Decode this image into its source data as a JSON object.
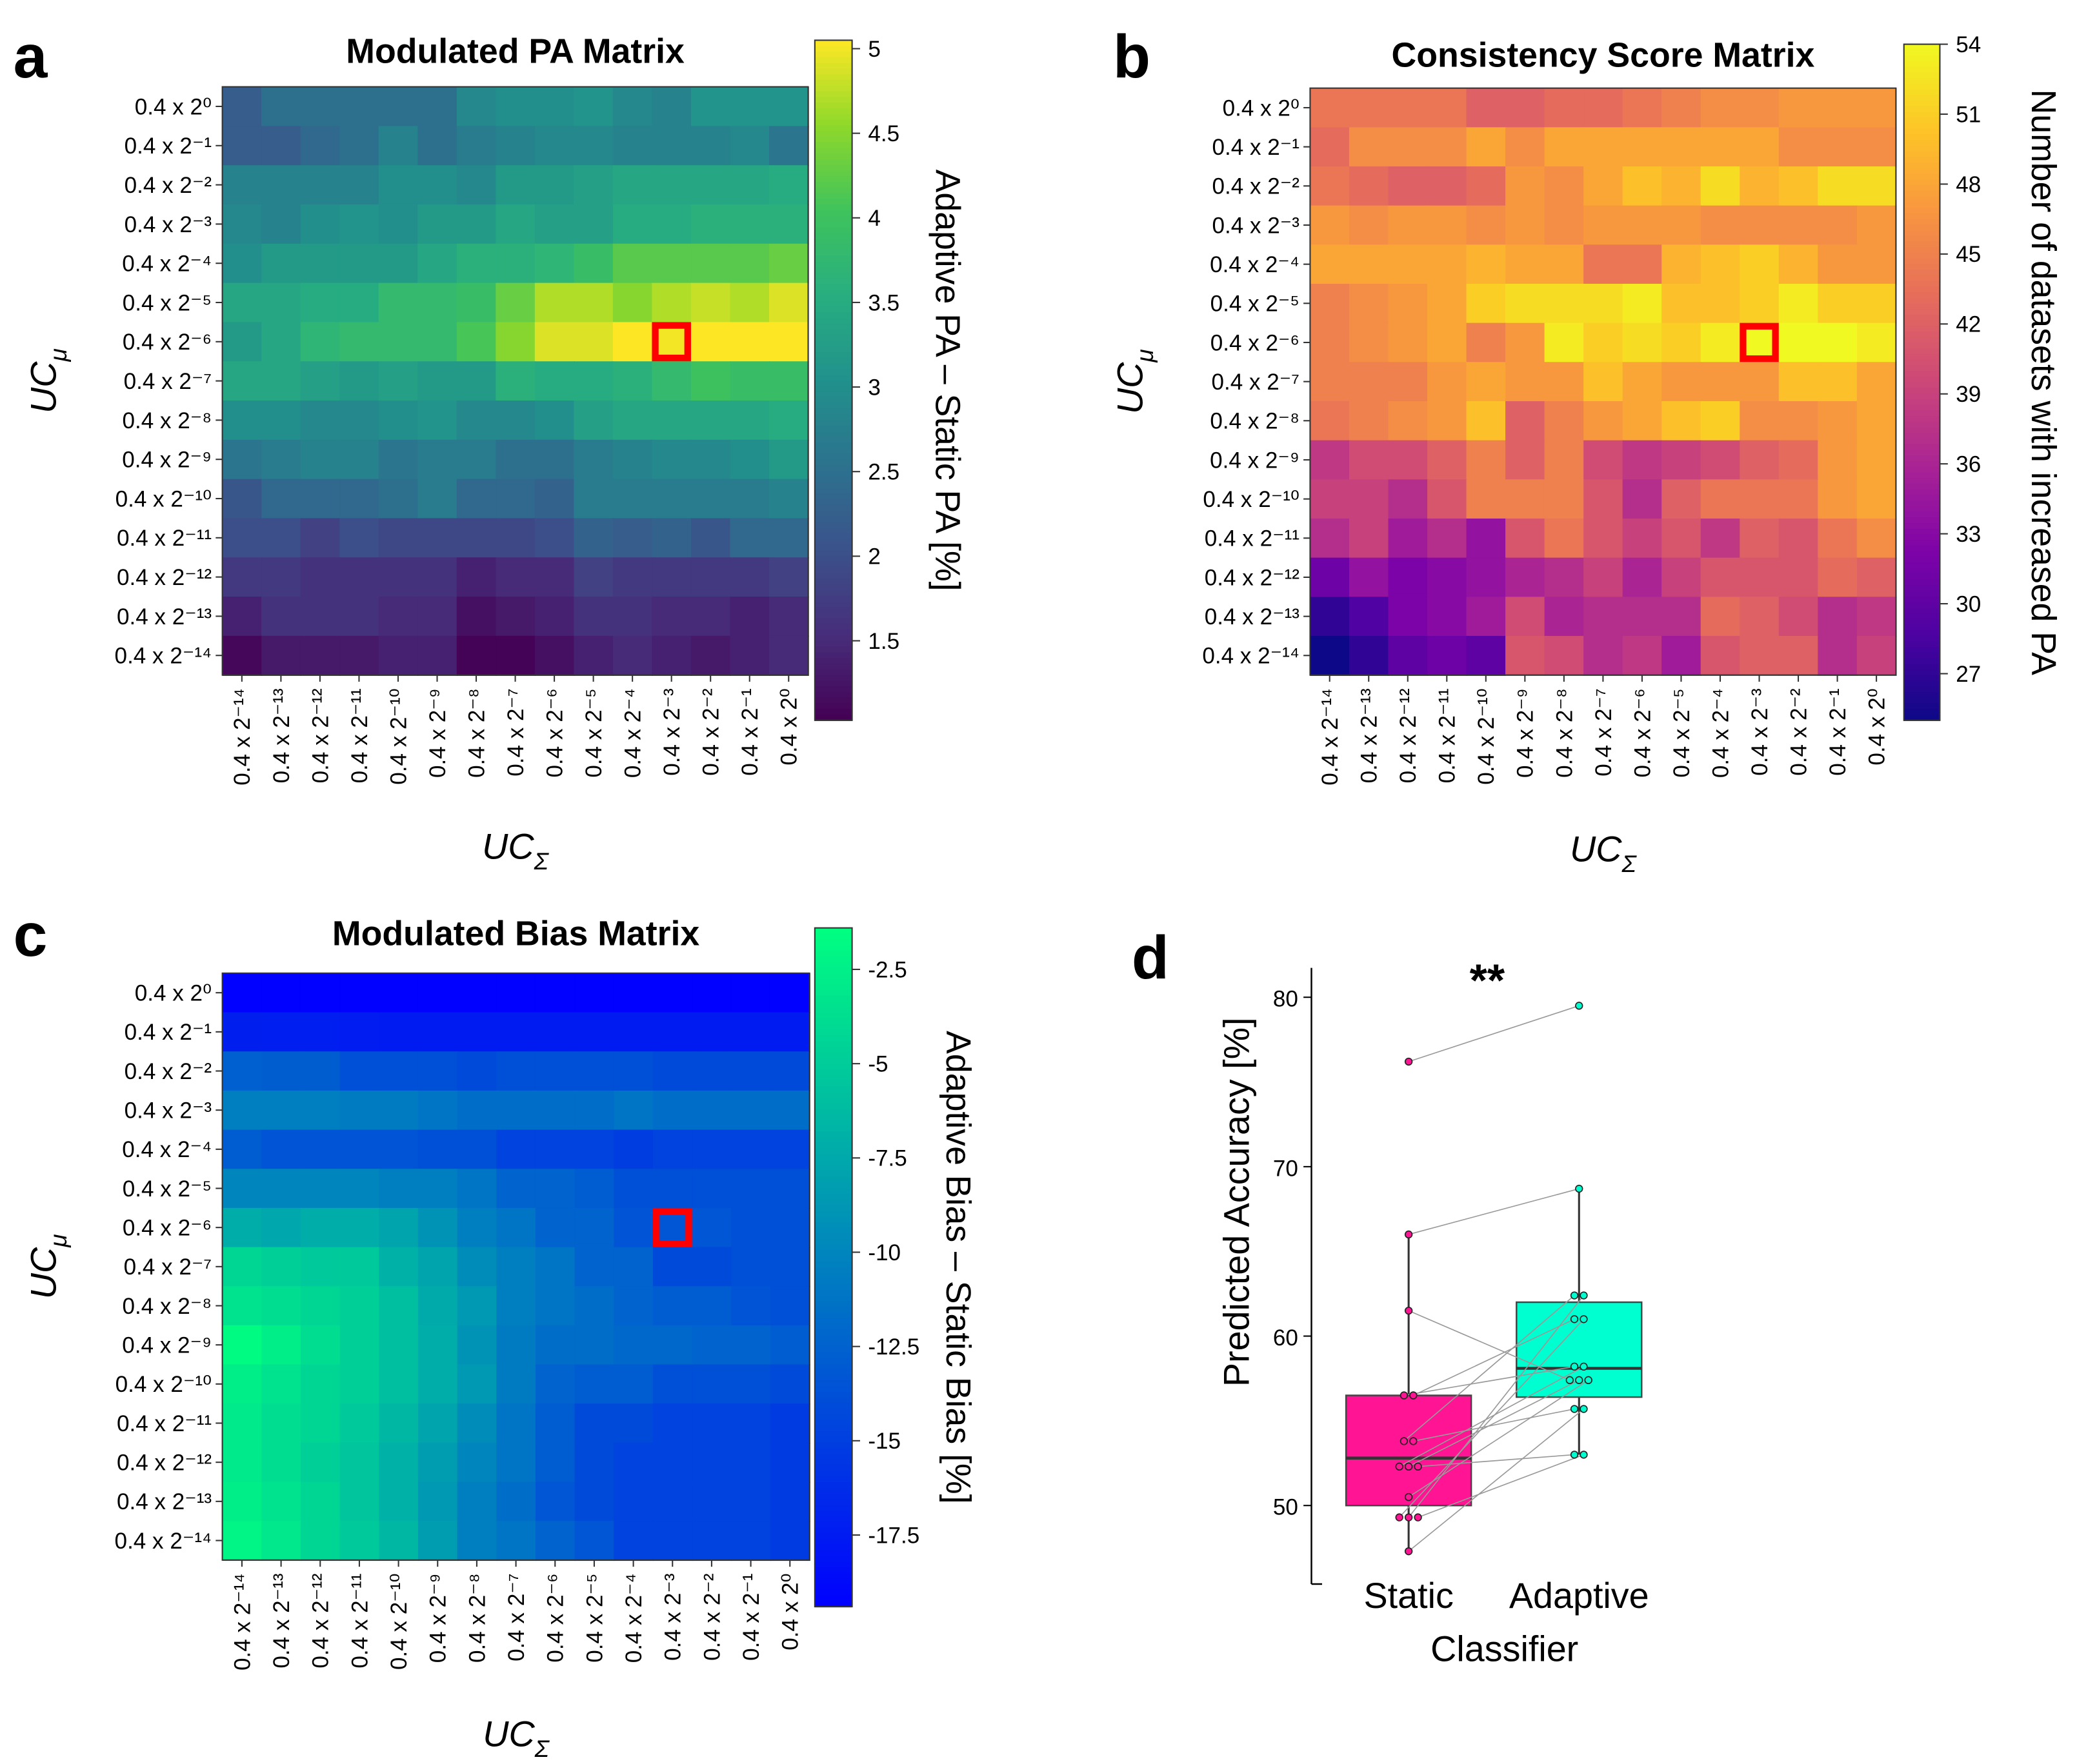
{
  "panel_letters": [
    "a",
    "b",
    "c",
    "d"
  ],
  "chart_data": [
    {
      "type": "heatmap",
      "title": "Modulated PA Matrix",
      "xlabel": {
        "main": "UC",
        "sub": "Σ"
      },
      "ylabel": {
        "main": "UC",
        "sub": "μ"
      },
      "colorbar_label": "Adaptive PA – Static PA [%]",
      "colormap": "viridis",
      "colorbar_range": [
        1.03,
        5.05
      ],
      "colorbar_ticks": [
        "5",
        "4.5",
        "4",
        "3.5",
        "3",
        "2.5",
        "2",
        "1.5"
      ],
      "colorbar_tick_values": [
        5,
        4.5,
        4,
        3.5,
        3,
        2.5,
        2,
        1.5
      ],
      "y_tick_labels": [
        "0.4 x 2⁰",
        "0.4 x 2⁻¹",
        "0.4 x 2⁻²",
        "0.4 x 2⁻³",
        "0.4 x 2⁻⁴",
        "0.4 x 2⁻⁵",
        "0.4 x 2⁻⁶",
        "0.4 x 2⁻⁷",
        "0.4 x 2⁻⁸",
        "0.4 x 2⁻⁹",
        "0.4 x 2⁻¹⁰",
        "0.4 x 2⁻¹¹",
        "0.4 x 2⁻¹²",
        "0.4 x 2⁻¹³",
        "0.4 x 2⁻¹⁴"
      ],
      "x_tick_labels": [
        "0.4 x 2⁻¹⁴",
        "0.4 x 2⁻¹³",
        "0.4 x 2⁻¹²",
        "0.4 x 2⁻¹¹",
        "0.4 x 2⁻¹⁰",
        "0.4 x 2⁻⁹",
        "0.4 x 2⁻⁸",
        "0.4 x 2⁻⁷",
        "0.4 x 2⁻⁶",
        "0.4 x 2⁻⁵",
        "0.4 x 2⁻⁴",
        "0.4 x 2⁻³",
        "0.4 x 2⁻²",
        "0.4 x 2⁻¹",
        "0.4 x 2⁰"
      ],
      "highlight": {
        "row": 6,
        "col": 11,
        "color": "#ff0000"
      },
      "values": [
        [
          2.2,
          2.5,
          2.5,
          2.5,
          2.5,
          2.5,
          2.9,
          3.0,
          3.0,
          3.1,
          2.9,
          2.8,
          3.1,
          3.1,
          3.1
        ],
        [
          2.2,
          2.2,
          2.4,
          2.5,
          2.8,
          2.5,
          2.7,
          2.8,
          2.9,
          2.9,
          2.8,
          2.8,
          2.8,
          2.9,
          2.6
        ],
        [
          2.8,
          2.8,
          2.8,
          2.8,
          3.0,
          3.0,
          2.9,
          3.2,
          3.2,
          3.3,
          3.4,
          3.4,
          3.4,
          3.4,
          3.5
        ],
        [
          2.9,
          2.8,
          3.0,
          3.1,
          3.0,
          3.2,
          3.2,
          3.4,
          3.3,
          3.3,
          3.5,
          3.5,
          3.6,
          3.6,
          3.6
        ],
        [
          3.0,
          3.2,
          3.2,
          3.2,
          3.2,
          3.4,
          3.6,
          3.6,
          3.7,
          3.9,
          4.2,
          4.2,
          4.2,
          4.2,
          4.3
        ],
        [
          3.4,
          3.4,
          3.5,
          3.5,
          3.8,
          3.8,
          3.9,
          4.3,
          4.7,
          4.7,
          4.5,
          4.7,
          4.8,
          4.7,
          4.9
        ],
        [
          3.2,
          3.4,
          3.7,
          3.8,
          3.8,
          3.8,
          4.1,
          4.5,
          4.9,
          4.9,
          5.05,
          5.0,
          5.05,
          5.05,
          5.05
        ],
        [
          3.4,
          3.4,
          3.3,
          3.2,
          3.3,
          3.2,
          3.2,
          3.6,
          3.5,
          3.5,
          3.6,
          3.8,
          4.0,
          3.9,
          3.9
        ],
        [
          3.0,
          3.0,
          2.9,
          2.9,
          3.0,
          3.1,
          2.9,
          2.9,
          3.0,
          3.3,
          3.4,
          3.4,
          3.4,
          3.4,
          3.5
        ],
        [
          2.6,
          2.7,
          2.8,
          2.8,
          2.6,
          2.7,
          2.7,
          2.5,
          2.5,
          2.7,
          2.8,
          2.9,
          2.9,
          3.0,
          3.2
        ],
        [
          2.1,
          2.4,
          2.4,
          2.4,
          2.5,
          2.7,
          2.4,
          2.4,
          2.3,
          2.7,
          2.7,
          2.7,
          2.7,
          2.7,
          2.8
        ],
        [
          2.0,
          2.0,
          1.8,
          2.0,
          1.9,
          1.9,
          1.9,
          1.9,
          2.0,
          2.3,
          2.2,
          2.3,
          2.1,
          2.4,
          2.4
        ],
        [
          1.7,
          1.7,
          1.6,
          1.6,
          1.6,
          1.6,
          1.4,
          1.5,
          1.5,
          1.8,
          1.7,
          1.7,
          1.7,
          1.7,
          1.8
        ],
        [
          1.4,
          1.6,
          1.6,
          1.6,
          1.5,
          1.5,
          1.2,
          1.3,
          1.4,
          1.6,
          1.6,
          1.5,
          1.5,
          1.4,
          1.5
        ],
        [
          1.1,
          1.3,
          1.3,
          1.3,
          1.4,
          1.4,
          1.05,
          1.05,
          1.2,
          1.4,
          1.5,
          1.4,
          1.3,
          1.4,
          1.5
        ]
      ]
    },
    {
      "type": "heatmap",
      "title": "Consistency Score Matrix",
      "xlabel": {
        "main": "UC",
        "sub": "Σ"
      },
      "ylabel": {
        "main": "UC",
        "sub": "μ"
      },
      "colorbar_label": "Number of datasets with increased PA",
      "colormap": "plasma",
      "colorbar_range": [
        25,
        54
      ],
      "colorbar_ticks": [
        "54",
        "51",
        "48",
        "45",
        "42",
        "39",
        "36",
        "33",
        "30",
        "27"
      ],
      "colorbar_tick_values": [
        54,
        51,
        48,
        45,
        42,
        39,
        36,
        33,
        30,
        27
      ],
      "y_tick_labels": [
        "0.4 x 2⁰",
        "0.4 x 2⁻¹",
        "0.4 x 2⁻²",
        "0.4 x 2⁻³",
        "0.4 x 2⁻⁴",
        "0.4 x 2⁻⁵",
        "0.4 x 2⁻⁶",
        "0.4 x 2⁻⁷",
        "0.4 x 2⁻⁸",
        "0.4 x 2⁻⁹",
        "0.4 x 2⁻¹⁰",
        "0.4 x 2⁻¹¹",
        "0.4 x 2⁻¹²",
        "0.4 x 2⁻¹³",
        "0.4 x 2⁻¹⁴"
      ],
      "x_tick_labels": [
        "0.4 x 2⁻¹⁴",
        "0.4 x 2⁻¹³",
        "0.4 x 2⁻¹²",
        "0.4 x 2⁻¹¹",
        "0.4 x 2⁻¹⁰",
        "0.4 x 2⁻⁹",
        "0.4 x 2⁻⁸",
        "0.4 x 2⁻⁷",
        "0.4 x 2⁻⁶",
        "0.4 x 2⁻⁵",
        "0.4 x 2⁻⁴",
        "0.4 x 2⁻³",
        "0.4 x 2⁻²",
        "0.4 x 2⁻¹",
        "0.4 x 2⁰"
      ],
      "highlight": {
        "row": 6,
        "col": 11,
        "color": "#ff0000"
      },
      "values": [
        [
          44,
          44,
          44,
          44,
          42,
          42,
          43,
          43,
          44,
          45,
          46,
          46,
          47,
          47,
          47
        ],
        [
          43,
          46,
          46,
          46,
          48,
          46,
          48,
          48,
          48,
          48,
          48,
          48,
          46,
          46,
          46
        ],
        [
          44,
          43,
          42,
          42,
          43,
          47,
          46,
          48,
          50,
          49,
          52,
          49,
          50,
          52,
          52
        ],
        [
          47,
          46,
          47,
          47,
          46,
          47,
          46,
          47,
          47,
          47,
          46,
          46,
          46,
          46,
          47
        ],
        [
          48,
          48,
          48,
          48,
          49,
          48,
          48,
          44,
          44,
          49,
          50,
          51,
          49,
          47,
          47
        ],
        [
          45,
          46,
          47,
          48,
          51,
          52,
          52,
          52,
          53,
          50,
          50,
          51,
          53,
          51,
          51
        ],
        [
          45,
          46,
          47,
          48,
          45,
          47,
          53,
          51,
          52,
          51,
          53,
          54,
          54,
          54,
          53
        ],
        [
          45,
          45,
          45,
          47,
          48,
          47,
          47,
          50,
          48,
          47,
          47,
          47,
          50,
          50,
          48
        ],
        [
          44,
          45,
          46,
          47,
          50,
          42,
          45,
          47,
          48,
          50,
          51,
          46,
          46,
          47,
          48
        ],
        [
          38,
          40,
          40,
          42,
          45,
          42,
          45,
          40,
          38,
          39,
          40,
          42,
          43,
          47,
          48
        ],
        [
          39,
          39,
          37,
          41,
          45,
          45,
          45,
          41,
          37,
          42,
          44,
          44,
          44,
          47,
          48
        ],
        [
          37,
          39,
          35,
          37,
          34,
          41,
          44,
          41,
          39,
          41,
          38,
          42,
          41,
          44,
          46
        ],
        [
          31,
          34,
          32,
          33,
          34,
          36,
          37,
          39,
          36,
          39,
          41,
          41,
          41,
          43,
          42
        ],
        [
          27,
          29,
          32,
          33,
          35,
          40,
          36,
          37,
          37,
          37,
          43,
          42,
          40,
          37,
          38
        ],
        [
          25,
          27,
          30,
          31,
          30,
          41,
          40,
          37,
          38,
          35,
          41,
          42,
          42,
          37,
          39
        ]
      ]
    },
    {
      "type": "heatmap",
      "title": "Modulated Bias Matrix",
      "xlabel": {
        "main": "UC",
        "sub": "Σ"
      },
      "ylabel": {
        "main": "UC",
        "sub": "μ"
      },
      "colorbar_label": "Adaptive Bias – Static Bias [%]",
      "colormap": "winter",
      "colorbar_range": [
        -19.4,
        -1.4
      ],
      "colorbar_ticks": [
        "-2.5",
        "-5",
        "-7.5",
        "-10",
        "-12.5",
        "-15",
        "-17.5"
      ],
      "colorbar_tick_values": [
        -2.5,
        -5,
        -7.5,
        -10,
        -12.5,
        -15,
        -17.5
      ],
      "y_tick_labels": [
        "0.4 x 2⁰",
        "0.4 x 2⁻¹",
        "0.4 x 2⁻²",
        "0.4 x 2⁻³",
        "0.4 x 2⁻⁴",
        "0.4 x 2⁻⁵",
        "0.4 x 2⁻⁶",
        "0.4 x 2⁻⁷",
        "0.4 x 2⁻⁸",
        "0.4 x 2⁻⁹",
        "0.4 x 2⁻¹⁰",
        "0.4 x 2⁻¹¹",
        "0.4 x 2⁻¹²",
        "0.4 x 2⁻¹³",
        "0.4 x 2⁻¹⁴"
      ],
      "x_tick_labels": [
        "0.4 x 2⁻¹⁴",
        "0.4 x 2⁻¹³",
        "0.4 x 2⁻¹²",
        "0.4 x 2⁻¹¹",
        "0.4 x 2⁻¹⁰",
        "0.4 x 2⁻⁹",
        "0.4 x 2⁻⁸",
        "0.4 x 2⁻⁷",
        "0.4 x 2⁻⁶",
        "0.4 x 2⁻⁵",
        "0.4 x 2⁻⁴",
        "0.4 x 2⁻³",
        "0.4 x 2⁻²",
        "0.4 x 2⁻¹",
        "0.4 x 2⁰"
      ],
      "highlight": {
        "row": 6,
        "col": 11,
        "color": "#ff0000"
      },
      "values": [
        [
          -19.3,
          -19.3,
          -19.3,
          -19.3,
          -19.3,
          -19.3,
          -19.3,
          -19.3,
          -19.3,
          -19.3,
          -19.3,
          -19.3,
          -19.3,
          -19.3,
          -19.3
        ],
        [
          -17.2,
          -17.3,
          -17.3,
          -17.4,
          -17.5,
          -17.5,
          -17.5,
          -17.5,
          -17.5,
          -17.5,
          -17.5,
          -17.5,
          -17.5,
          -17.5,
          -17.5
        ],
        [
          -12.6,
          -12.8,
          -12.8,
          -13.8,
          -13.8,
          -13.8,
          -14.2,
          -13.8,
          -13.8,
          -13.8,
          -13.8,
          -14.2,
          -14.2,
          -14.2,
          -14.2
        ],
        [
          -10.4,
          -10.4,
          -10.4,
          -10.7,
          -10.7,
          -11.2,
          -11.7,
          -11.7,
          -11.7,
          -11.7,
          -11.2,
          -11.7,
          -11.7,
          -11.7,
          -11.7
        ],
        [
          -12.9,
          -13.5,
          -13.5,
          -13.5,
          -13.5,
          -13.8,
          -13.8,
          -14.7,
          -14.7,
          -14.7,
          -15.1,
          -14.7,
          -14.7,
          -14.7,
          -14.7
        ],
        [
          -10.0,
          -10.0,
          -10.0,
          -10.0,
          -10.4,
          -10.4,
          -11.2,
          -12.4,
          -12.4,
          -12.9,
          -13.8,
          -13.8,
          -13.8,
          -13.8,
          -13.8
        ],
        [
          -7.2,
          -7.6,
          -7.2,
          -7.2,
          -7.8,
          -9.0,
          -10.4,
          -11.2,
          -12.4,
          -12.4,
          -13.5,
          -13.3,
          -13.3,
          -13.8,
          -13.8
        ],
        [
          -4.3,
          -4.8,
          -5.2,
          -5.2,
          -6.9,
          -7.8,
          -9.5,
          -10.4,
          -11.2,
          -12.4,
          -12.4,
          -14.2,
          -14.2,
          -13.8,
          -13.8
        ],
        [
          -3.4,
          -3.8,
          -4.3,
          -4.8,
          -6.0,
          -7.4,
          -8.6,
          -10.4,
          -11.2,
          -11.7,
          -12.4,
          -12.9,
          -12.9,
          -13.5,
          -13.8
        ],
        [
          -1.7,
          -2.6,
          -3.8,
          -4.8,
          -6.0,
          -7.2,
          -9.0,
          -10.7,
          -11.7,
          -11.7,
          -12.1,
          -12.1,
          -12.4,
          -12.4,
          -12.9
        ],
        [
          -2.6,
          -3.4,
          -4.3,
          -4.8,
          -6.0,
          -7.2,
          -8.6,
          -10.7,
          -12.4,
          -12.9,
          -12.9,
          -13.8,
          -13.8,
          -13.8,
          -14.2
        ],
        [
          -2.9,
          -3.8,
          -4.3,
          -5.2,
          -6.5,
          -7.8,
          -9.5,
          -11.2,
          -12.9,
          -14.2,
          -14.2,
          -14.7,
          -14.7,
          -14.7,
          -15.2
        ],
        [
          -2.9,
          -3.8,
          -4.8,
          -5.5,
          -6.9,
          -8.3,
          -10.0,
          -11.2,
          -12.9,
          -14.2,
          -14.7,
          -14.7,
          -14.7,
          -14.7,
          -15.2
        ],
        [
          -2.6,
          -3.4,
          -4.3,
          -5.5,
          -6.9,
          -8.6,
          -10.4,
          -11.7,
          -13.3,
          -14.2,
          -14.7,
          -14.7,
          -14.7,
          -14.7,
          -15.2
        ],
        [
          -2.2,
          -3.1,
          -4.3,
          -5.2,
          -6.5,
          -8.3,
          -10.4,
          -11.2,
          -12.4,
          -13.3,
          -14.7,
          -14.7,
          -14.7,
          -14.7,
          -15.2
        ]
      ]
    },
    {
      "type": "box",
      "ylabel": "Predicted Accuracy [%]",
      "xlabel": "Classifier",
      "categories": [
        "Static",
        "Adaptive"
      ],
      "colors": [
        "#ff1493",
        "#00ffd0"
      ],
      "ylim": [
        45.4,
        81.7
      ],
      "y_ticks": [
        "50",
        "60",
        "70",
        "80"
      ],
      "y_tick_values": [
        50,
        60,
        70,
        80
      ],
      "significance": "**",
      "boxes": [
        {
          "q1": 50.0,
          "median": 52.8,
          "q3": 56.5,
          "whisker_low": 47.3,
          "whisker_high": 66.0
        },
        {
          "q1": 56.4,
          "median": 58.1,
          "q3": 62.0,
          "whisker_low": 53.0,
          "whisker_high": 68.7
        }
      ],
      "paired_points": {
        "Static": [
          76.2,
          66.0,
          61.5,
          56.5,
          56.5,
          53.8,
          53.8,
          52.3,
          52.3,
          52.3,
          50.5,
          49.3,
          49.3,
          49.3,
          47.3
        ],
        "Adaptive": [
          79.5,
          68.7,
          57.4,
          58.2,
          61.0,
          62.4,
          55.7,
          58.2,
          57.4,
          53.0,
          57.4,
          61.0,
          62.4,
          53.0,
          55.7
        ]
      }
    }
  ]
}
